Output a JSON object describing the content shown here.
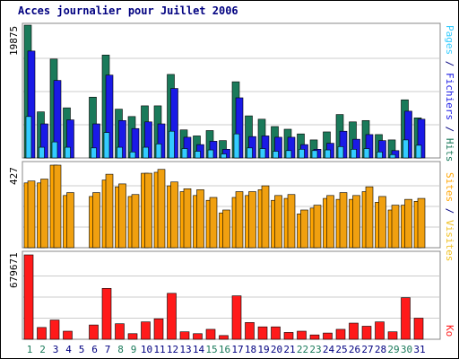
{
  "title": "Acces journalier pour Juillet 2006",
  "colors": {
    "visits": "#1a7a5a",
    "pages": "#1a1ae6",
    "hits": "#33ccff",
    "files_alt": "#f0a010",
    "sites": "#ffa500",
    "kb": "#ff1a1a",
    "title": "#000080",
    "day_weekend": "#1a7a5a",
    "day_weekday": "#000080"
  },
  "chart_data": [
    {
      "type": "bar",
      "panel": "top",
      "ymax_label": "19875",
      "right_label": {
        "pages": "Pages",
        "files": "Fichiers",
        "hits": "Hits",
        "sep": " / "
      },
      "categories": [
        "1",
        "2",
        "3",
        "4",
        "5",
        "6",
        "7",
        "8",
        "9",
        "10",
        "11",
        "12",
        "13",
        "14",
        "15",
        "16",
        "17",
        "18",
        "19",
        "20",
        "21",
        "22",
        "23",
        "24",
        "25",
        "26",
        "27",
        "28",
        "29",
        "30",
        "31"
      ],
      "weekend_days": [
        "1",
        "2",
        "8",
        "9",
        "15",
        "16",
        "22",
        "23",
        "29",
        "30"
      ],
      "ylim": [
        0,
        19875
      ],
      "series": [
        {
          "name": "Hits",
          "values": [
            19875,
            6900,
            14800,
            7500,
            0,
            9100,
            15400,
            7300,
            6200,
            7800,
            7800,
            12500,
            4200,
            3300,
            4100,
            2600,
            11400,
            6300,
            5800,
            4700,
            4300,
            3600,
            2700,
            3900,
            6500,
            5400,
            5600,
            3500,
            2700,
            8700,
            6000
          ]
        },
        {
          "name": "Fichiers",
          "values": [
            16000,
            5100,
            11600,
            5700,
            0,
            5100,
            12400,
            5600,
            4400,
            5400,
            5100,
            10400,
            3100,
            2000,
            2500,
            1300,
            9000,
            3200,
            3300,
            3100,
            3100,
            2000,
            1300,
            2200,
            4000,
            2800,
            3500,
            2600,
            1100,
            7000,
            5800
          ]
        },
        {
          "name": "Pages",
          "values": [
            6200,
            1600,
            2400,
            1600,
            0,
            1500,
            3800,
            1600,
            900,
            1600,
            2100,
            4000,
            1400,
            1000,
            1200,
            600,
            3600,
            1500,
            1400,
            1000,
            1100,
            1300,
            1100,
            1200,
            1700,
            1300,
            1400,
            900,
            500,
            2700,
            1900
          ]
        }
      ]
    },
    {
      "type": "bar",
      "panel": "middle",
      "ymax_label": "427",
      "right_label": {
        "sites": "Sites",
        "visits": "Visites",
        "sep": " / "
      },
      "ylim": [
        0,
        427
      ],
      "series": [
        {
          "name": "Visites",
          "values": [
            345,
            355,
            427,
            285,
            0,
            285,
            380,
            330,
            275,
            385,
            405,
            340,
            305,
            300,
            260,
            195,
            290,
            290,
            320,
            270,
            275,
            195,
            220,
            270,
            285,
            270,
            315,
            265,
            220,
            250,
            255
          ]
        },
        {
          "name": "Sites",
          "values": [
            335,
            335,
            427,
            270,
            0,
            265,
            350,
            315,
            265,
            385,
            390,
            320,
            290,
            270,
            245,
            180,
            260,
            270,
            300,
            245,
            255,
            175,
            205,
            255,
            250,
            250,
            290,
            235,
            195,
            220,
            240
          ]
        }
      ]
    },
    {
      "type": "bar",
      "panel": "bottom",
      "ymax_label": "679671",
      "right_label": {
        "kb": "Ko"
      },
      "ylim": [
        0,
        679671
      ],
      "series": [
        {
          "name": "Ko",
          "values": [
            679671,
            95000,
            155000,
            65000,
            0,
            115000,
            410000,
            125000,
            45000,
            140000,
            165000,
            370000,
            60000,
            45000,
            80000,
            30000,
            350000,
            135000,
            100000,
            100000,
            55000,
            65000,
            35000,
            50000,
            80000,
            130000,
            105000,
            140000,
            60000,
            335000,
            170000
          ]
        }
      ]
    }
  ]
}
